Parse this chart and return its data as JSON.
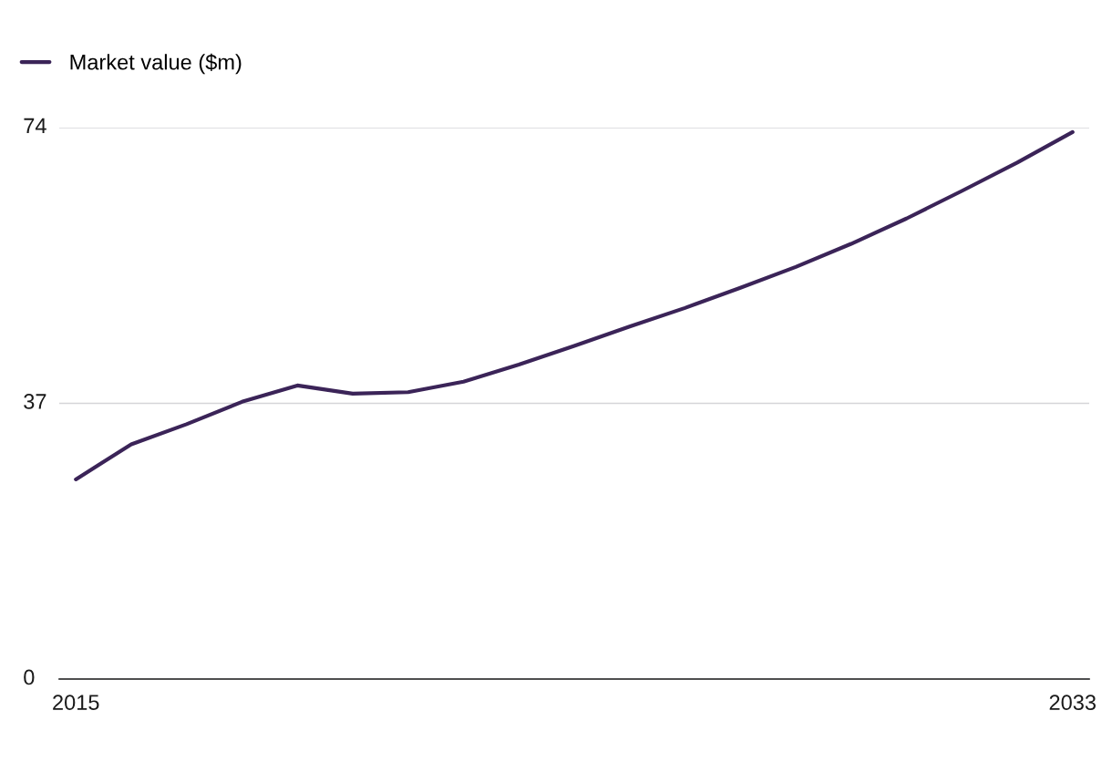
{
  "chart_data": {
    "type": "line",
    "x": [
      2015,
      2016,
      2017,
      2018,
      2019,
      2020,
      2021,
      2022,
      2023,
      2024,
      2025,
      2026,
      2027,
      2028,
      2029,
      2030,
      2031,
      2032,
      2033
    ],
    "series": [
      {
        "name": "Market value ($m)",
        "color": "#3b2458",
        "values": [
          26.8,
          31.5,
          34.2,
          37.2,
          39.4,
          38.3,
          38.5,
          39.9,
          42.2,
          44.7,
          47.3,
          49.8,
          52.5,
          55.3,
          58.4,
          61.8,
          65.5,
          69.3,
          73.4
        ]
      }
    ],
    "xlim": [
      2014.7,
      2033.3
    ],
    "xticks": [
      2015,
      2033
    ],
    "ylim": [
      0,
      74
    ],
    "yticks": [
      0,
      37,
      74
    ],
    "grid": "y",
    "legend": "top left",
    "marker": "none",
    "line_style": "solid"
  }
}
